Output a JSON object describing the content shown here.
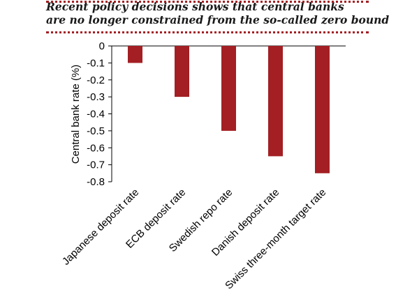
{
  "chart_data": {
    "type": "bar",
    "title": [
      "Recent policy decisions shows that central banks",
      "are no longer constrained from the so-called zero bound"
    ],
    "ylabel": "Central bank rate (%)",
    "xlabel": "",
    "categories": [
      "Japanese deposit rate",
      "ECB deposit rate",
      "Swedish repo rate",
      "Danish deposit rate",
      "Swiss three-month target rate"
    ],
    "values": [
      -0.1,
      -0.3,
      -0.5,
      -0.65,
      -0.75
    ],
    "ylim": [
      -0.8,
      0
    ],
    "yticks": [
      "0",
      "-0.1",
      "-0.2",
      "-0.3",
      "-0.4",
      "-0.5",
      "-0.6",
      "-0.7",
      "-0.8"
    ],
    "grid": false,
    "legend": "none",
    "colors": {
      "bar": "#a31f23",
      "accent_rule": "#a31f23",
      "text": "#000000"
    }
  }
}
